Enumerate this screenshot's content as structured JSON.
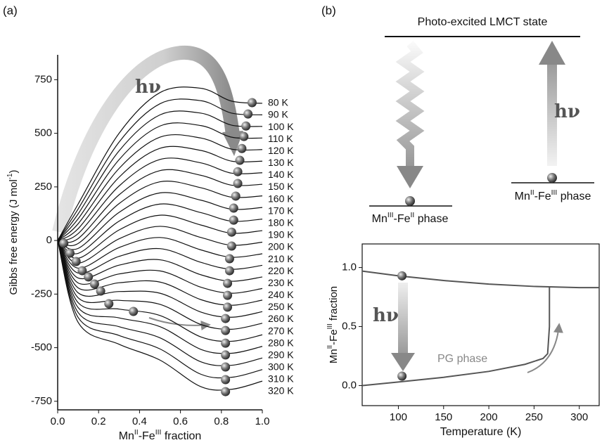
{
  "panel_labels": [
    "(a)",
    "(b)"
  ],
  "diagram": {
    "top_state": "Photo-excited LMCT state",
    "left_phase": [
      "Mn",
      "III",
      "-Fe",
      "II",
      " phase"
    ],
    "right_phase": [
      "Mn",
      "II",
      "-Fe",
      "III",
      " phase"
    ],
    "arrow_label": "hν"
  },
  "chart_data": [
    {
      "type": "line",
      "smooth": true,
      "xlabel": [
        "Mn",
        "II",
        "-Fe",
        "III",
        " fraction"
      ],
      "ylabel": [
        "Gibbs free energy (J mol",
        "-1",
        ")"
      ],
      "xlim": [
        0,
        1
      ],
      "ylim": [
        -790,
        866
      ],
      "xticks": [
        {
          "value": 0,
          "label": "0.0"
        },
        {
          "value": 0.2,
          "label": "0.2"
        },
        {
          "value": 0.4,
          "label": "0.4"
        },
        {
          "value": 0.6,
          "label": "0.6"
        },
        {
          "value": 0.8,
          "label": "0.8"
        },
        {
          "value": 1,
          "label": "1.0"
        }
      ],
      "yticks": [
        -750,
        -500,
        -250,
        0,
        250,
        500,
        750
      ],
      "annotations": [
        "hν"
      ],
      "x": [
        0,
        0.1,
        0.3,
        0.5,
        0.7,
        0.85,
        1
      ],
      "series": [
        {
          "name": "80 K",
          "color": "#111",
          "values": [
            0,
            170,
            500,
            690,
            710,
            650,
            640
          ]
        },
        {
          "name": "90 K",
          "color": "#111",
          "values": [
            0,
            147,
            459,
            638,
            652,
            594,
            586
          ]
        },
        {
          "name": "100 K",
          "color": "#111",
          "values": [
            0,
            124,
            418,
            586,
            594,
            538,
            532
          ]
        },
        {
          "name": "110 K",
          "color": "#111",
          "values": [
            0,
            101,
            377,
            534,
            536,
            482,
            478
          ]
        },
        {
          "name": "120 K",
          "color": "#111",
          "values": [
            0,
            78,
            336,
            482,
            478,
            426,
            424
          ]
        },
        {
          "name": "130 K",
          "color": "#111",
          "values": [
            0,
            55,
            295,
            430,
            420,
            370,
            370
          ]
        },
        {
          "name": "140 K",
          "color": "#111",
          "values": [
            0,
            32,
            254,
            378,
            362,
            314,
            316
          ]
        },
        {
          "name": "150 K",
          "color": "#111",
          "values": [
            0,
            9,
            213,
            326,
            304,
            258,
            262
          ]
        },
        {
          "name": "160 K",
          "color": "#111",
          "values": [
            0,
            -14,
            172,
            274,
            246,
            202,
            208
          ]
        },
        {
          "name": "170 K",
          "color": "#111",
          "values": [
            0,
            -37,
            131,
            222,
            188,
            146,
            154
          ]
        },
        {
          "name": "180 K",
          "color": "#111",
          "values": [
            0,
            -60,
            90,
            170,
            130,
            90,
            100
          ]
        },
        {
          "name": "190 K",
          "color": "#111",
          "values": [
            0,
            -83,
            49,
            118,
            72,
            34,
            46
          ]
        },
        {
          "name": "200 K",
          "color": "#111",
          "values": [
            0,
            -106,
            8,
            66,
            14,
            -22,
            -8
          ]
        },
        {
          "name": "210 K",
          "color": "#111",
          "values": [
            0,
            -129,
            -33,
            14,
            -44,
            -78,
            -62
          ]
        },
        {
          "name": "220 K",
          "color": "#111",
          "values": [
            0,
            -152,
            -74,
            -38,
            -102,
            -134,
            -116
          ]
        },
        {
          "name": "230 K",
          "color": "#111",
          "values": [
            0,
            -175,
            -115,
            -90,
            -160,
            -190,
            -170
          ]
        },
        {
          "name": "240 K",
          "color": "#111",
          "values": [
            0,
            -198,
            -156,
            -142,
            -218,
            -246,
            -224
          ]
        },
        {
          "name": "250 K",
          "color": "#111",
          "values": [
            0,
            -221,
            -197,
            -194,
            -276,
            -302,
            -278
          ]
        },
        {
          "name": "260 K",
          "color": "#111",
          "values": [
            0,
            -244,
            -238,
            -246,
            -334,
            -358,
            -332
          ]
        },
        {
          "name": "270 K",
          "color": "#111",
          "values": [
            0,
            -267,
            -279,
            -298,
            -392,
            -414,
            -386
          ]
        },
        {
          "name": "280 K",
          "color": "#111",
          "values": [
            0,
            -290,
            -320,
            -350,
            -450,
            -470,
            -440
          ]
        },
        {
          "name": "290 K",
          "color": "#111",
          "values": [
            0,
            -313,
            -361,
            -402,
            -508,
            -526,
            -494
          ]
        },
        {
          "name": "300 K",
          "color": "#111",
          "values": [
            0,
            -336,
            -402,
            -454,
            -566,
            -582,
            -548
          ]
        },
        {
          "name": "310 K",
          "color": "#111",
          "values": [
            0,
            -359,
            -443,
            -506,
            -624,
            -638,
            -602
          ]
        },
        {
          "name": "320 K",
          "color": "#111",
          "values": [
            0,
            -382,
            -484,
            -558,
            -682,
            -694,
            -656
          ]
        }
      ],
      "points": [
        {
          "x": [
            0.95,
            0.93,
            0.92,
            0.91,
            0.9,
            0.89,
            0.88,
            0.88,
            0.87,
            0.86,
            0.86,
            0.85,
            0.85,
            0.84,
            0.84,
            0.83,
            0.83,
            0.83,
            0.82,
            0.82,
            0.82,
            0.82,
            0.82,
            0.82,
            0.82
          ],
          "y": [
            643,
            590,
            534,
            485,
            429,
            374,
            321,
            266,
            207,
            151,
            95,
            39,
            -26,
            -85,
            -141,
            -200,
            -256,
            -311,
            -364,
            -420,
            -479,
            -534,
            -590,
            -649,
            -705
          ]
        },
        {
          "x": [
            0.03,
            0.06,
            0.09,
            0.12,
            0.15,
            0.18,
            0.21,
            0.25,
            0.37
          ],
          "y": [
            -13,
            -59,
            -98,
            -141,
            -170,
            -203,
            -236,
            -295,
            -331
          ]
        }
      ]
    },
    {
      "type": "line",
      "smooth": false,
      "xlabel": [
        "Temperature (K)"
      ],
      "ylabel": [
        "Mn",
        "II",
        "-Fe",
        "III",
        " fraction"
      ],
      "xlim": [
        60,
        322
      ],
      "ylim": [
        -0.17,
        1.2
      ],
      "xticks": [
        100,
        150,
        200,
        250,
        300
      ],
      "yticks": [
        {
          "value": 0,
          "label": "0.0"
        },
        {
          "value": 0.5,
          "label": "0.5"
        },
        {
          "value": 1,
          "label": "1.0"
        }
      ],
      "annotations": [
        "hν",
        "PG phase"
      ],
      "series": [
        {
          "color": "#555",
          "x": [
            60,
            100,
            150,
            200,
            250,
            300,
            322
          ],
          "values": [
            0.97,
            0.93,
            0.89,
            0.86,
            0.84,
            0.83,
            0.83
          ]
        },
        {
          "color": "#555",
          "x": [
            60,
            100,
            150,
            200,
            240,
            260,
            265,
            267,
            267
          ],
          "values": [
            0,
            0.03,
            0.07,
            0.12,
            0.18,
            0.23,
            0.27,
            0.5,
            0.84
          ]
        }
      ],
      "points": [
        {
          "x": [
            104,
            104
          ],
          "y": [
            0.93,
            0.08
          ]
        }
      ]
    }
  ]
}
